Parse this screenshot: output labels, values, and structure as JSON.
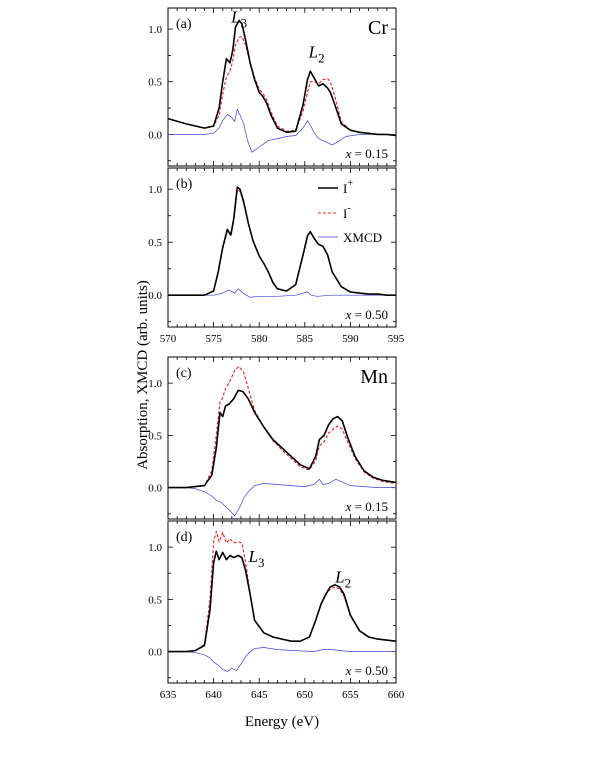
{
  "figure": {
    "ylabel": "Absorption, XMCD (arb. units)",
    "xlabel": "Energy (eV)",
    "legend": [
      {
        "label": "I",
        "sup": "+",
        "style": "solid",
        "color": "#000000"
      },
      {
        "label": "I",
        "sup": "-",
        "style": "dashed",
        "color": "#e02020"
      },
      {
        "label": "XMCD",
        "style": "thin",
        "color": "#4040d8"
      }
    ],
    "colors": {
      "iplus": "#000000",
      "iminus": "#e02020",
      "xmcd": "#4040d8"
    }
  },
  "chart_data": [
    {
      "type": "line",
      "panel": "(a)",
      "element": "Cr",
      "x_text": "= 0.15",
      "x_var": "x",
      "xlim": [
        570,
        595
      ],
      "ylim": [
        -0.3,
        1.2
      ],
      "yticks": [
        "0.0",
        "0.5",
        "1.0"
      ],
      "yticks_v": [
        0,
        0.5,
        1.0
      ],
      "xticks": [],
      "annotations": [
        {
          "main": "L",
          "sub": "3",
          "x": 577.8,
          "y": 1.06
        },
        {
          "main": "L",
          "sub": "2",
          "x": 586.3,
          "y": 0.73
        }
      ],
      "series": [
        {
          "key": "iplus",
          "x": [
            570,
            572,
            574,
            575,
            575.6,
            576,
            576.4,
            576.8,
            577.1,
            577.4,
            577.8,
            578.1,
            578.5,
            579,
            579.5,
            580,
            580.4,
            580.8,
            581.3,
            582,
            583,
            584,
            584.8,
            585.3,
            585.6,
            586,
            586.5,
            587,
            587.5,
            587.8,
            588.3,
            589,
            590,
            591,
            592,
            593,
            594,
            595
          ],
          "y": [
            0.15,
            0.1,
            0.06,
            0.08,
            0.25,
            0.5,
            0.72,
            0.68,
            0.8,
            1.02,
            1.08,
            1.05,
            0.9,
            0.68,
            0.52,
            0.4,
            0.36,
            0.3,
            0.18,
            0.06,
            0.02,
            0.03,
            0.28,
            0.52,
            0.6,
            0.54,
            0.46,
            0.48,
            0.44,
            0.4,
            0.28,
            0.1,
            0.04,
            0.02,
            0.01,
            0.0,
            0.0,
            -0.01
          ]
        },
        {
          "key": "iminus",
          "x": [
            570,
            572,
            574,
            575,
            575.6,
            576,
            576.4,
            576.8,
            577.1,
            577.4,
            577.8,
            578.1,
            578.5,
            579,
            579.5,
            580,
            580.4,
            580.8,
            581.3,
            582,
            583,
            584,
            584.8,
            585.3,
            585.6,
            586,
            586.5,
            587,
            587.5,
            587.8,
            588.3,
            589,
            590,
            591,
            592,
            593,
            594,
            595
          ],
          "y": [
            0.15,
            0.1,
            0.06,
            0.08,
            0.18,
            0.38,
            0.55,
            0.6,
            0.7,
            0.85,
            0.92,
            0.93,
            0.85,
            0.68,
            0.54,
            0.43,
            0.39,
            0.33,
            0.21,
            0.08,
            0.03,
            0.04,
            0.22,
            0.4,
            0.5,
            0.5,
            0.48,
            0.52,
            0.53,
            0.5,
            0.36,
            0.12,
            0.04,
            0.02,
            0.01,
            0.0,
            0.0,
            -0.01
          ]
        },
        {
          "key": "xmcd",
          "x": [
            570,
            572,
            574,
            575,
            575.6,
            576,
            576.5,
            577,
            577.3,
            577.6,
            578,
            578.3,
            578.7,
            579.2,
            580,
            581,
            582,
            583,
            584,
            584.8,
            585.3,
            585.6,
            586,
            586.5,
            587,
            587.5,
            588,
            588.6,
            589.5,
            591,
            593,
            595
          ],
          "y": [
            0.0,
            0.0,
            0.0,
            0.01,
            0.06,
            0.13,
            0.19,
            0.16,
            0.12,
            0.24,
            0.16,
            0.1,
            -0.05,
            -0.17,
            -0.12,
            -0.06,
            -0.04,
            -0.02,
            -0.01,
            0.06,
            0.13,
            0.09,
            0.02,
            -0.04,
            -0.06,
            -0.08,
            -0.1,
            -0.07,
            -0.02,
            0.0,
            0.0,
            0.0
          ]
        }
      ]
    },
    {
      "type": "line",
      "panel": "(b)",
      "element": "",
      "x_text": "= 0.50",
      "x_var": "x",
      "xlim": [
        570,
        595
      ],
      "ylim": [
        -0.3,
        1.2
      ],
      "yticks": [
        "0.0",
        "0.5",
        "1.0"
      ],
      "yticks_v": [
        0,
        0.5,
        1.0
      ],
      "xticks": [
        "570",
        "575",
        "580",
        "585",
        "590",
        "595"
      ],
      "xticks_v": [
        570,
        575,
        580,
        585,
        590,
        595
      ],
      "annotations": [],
      "series": [
        {
          "key": "iplus",
          "x": [
            570,
            572,
            574,
            575,
            575.5,
            576,
            576.5,
            576.9,
            577.2,
            577.6,
            577.9,
            578.3,
            578.8,
            579.3,
            580,
            580.5,
            581,
            581.5,
            582,
            583,
            584,
            584.8,
            585.3,
            585.6,
            586,
            586.5,
            587,
            587.5,
            588,
            589,
            590,
            591,
            592,
            593,
            594,
            595
          ],
          "y": [
            0.0,
            0.0,
            0.0,
            0.04,
            0.22,
            0.45,
            0.62,
            0.57,
            0.72,
            1.02,
            1.0,
            0.88,
            0.68,
            0.52,
            0.37,
            0.3,
            0.22,
            0.12,
            0.06,
            0.04,
            0.1,
            0.38,
            0.56,
            0.6,
            0.54,
            0.48,
            0.46,
            0.38,
            0.22,
            0.08,
            0.03,
            0.02,
            0.01,
            0.01,
            0.0,
            0.0
          ]
        },
        {
          "key": "iminus",
          "x": [
            570,
            572,
            574,
            575,
            575.5,
            576,
            576.5,
            576.9,
            577.2,
            577.6,
            577.9,
            578.3,
            578.8,
            579.3,
            580,
            580.5,
            581,
            581.5,
            582,
            583,
            584,
            584.8,
            585.3,
            585.6,
            586,
            586.5,
            587,
            587.5,
            588,
            589,
            590,
            591,
            592,
            593,
            594,
            595
          ],
          "y": [
            0.0,
            0.0,
            0.0,
            0.04,
            0.21,
            0.44,
            0.6,
            0.56,
            0.7,
            0.99,
            0.98,
            0.87,
            0.68,
            0.52,
            0.37,
            0.3,
            0.22,
            0.12,
            0.06,
            0.04,
            0.1,
            0.37,
            0.55,
            0.59,
            0.54,
            0.48,
            0.46,
            0.38,
            0.22,
            0.08,
            0.03,
            0.02,
            0.01,
            0.01,
            0.0,
            0.0
          ]
        },
        {
          "key": "xmcd",
          "x": [
            570,
            572,
            575,
            576,
            576.7,
            577.3,
            577.7,
            578.2,
            579,
            580,
            582,
            584,
            585.3,
            585.7,
            586.3,
            588,
            590,
            595
          ],
          "y": [
            0.0,
            0.0,
            0.0,
            0.02,
            0.05,
            0.02,
            0.06,
            0.02,
            -0.02,
            -0.01,
            -0.01,
            0.0,
            0.03,
            0.0,
            -0.01,
            0.0,
            0.0,
            0.0
          ]
        }
      ]
    },
    {
      "type": "line",
      "panel": "(c)",
      "element": "Mn",
      "x_text": "= 0.15",
      "x_var": "x",
      "xlim": [
        635,
        660
      ],
      "ylim": [
        -0.3,
        1.25
      ],
      "yticks": [
        "0.0",
        "0.5",
        "1.0"
      ],
      "yticks_v": [
        0,
        0.5,
        1.0
      ],
      "xticks": [],
      "annotations": [],
      "series": [
        {
          "key": "iplus",
          "x": [
            635,
            637,
            639,
            639.8,
            640.3,
            640.7,
            641,
            641.3,
            641.7,
            642.2,
            642.7,
            643.2,
            643.8,
            644.5,
            645.5,
            646.5,
            647.5,
            648.5,
            649.5,
            650.5,
            651.2,
            651.6,
            652.1,
            652.6,
            653.1,
            653.6,
            654.1,
            654.7,
            655.5,
            656.5,
            657.5,
            658.5,
            660
          ],
          "y": [
            0.0,
            0.0,
            0.02,
            0.12,
            0.38,
            0.72,
            0.68,
            0.78,
            0.8,
            0.85,
            0.93,
            0.92,
            0.85,
            0.72,
            0.58,
            0.46,
            0.38,
            0.3,
            0.22,
            0.18,
            0.3,
            0.46,
            0.5,
            0.6,
            0.66,
            0.68,
            0.64,
            0.48,
            0.3,
            0.16,
            0.1,
            0.07,
            0.05
          ]
        },
        {
          "key": "iminus",
          "x": [
            635,
            637,
            639,
            639.8,
            640.3,
            640.7,
            641,
            641.3,
            641.8,
            642.3,
            642.8,
            643.3,
            643.8,
            644.5,
            645.5,
            646.5,
            647.5,
            648.5,
            649.5,
            650.5,
            651.2,
            651.6,
            652.1,
            652.6,
            653.1,
            653.6,
            654.1,
            654.7,
            655.5,
            656.5,
            657.5,
            658.5,
            660
          ],
          "y": [
            0.0,
            0.0,
            0.02,
            0.16,
            0.5,
            0.82,
            0.86,
            0.95,
            1.02,
            1.12,
            1.16,
            1.1,
            0.95,
            0.74,
            0.58,
            0.45,
            0.36,
            0.28,
            0.2,
            0.17,
            0.26,
            0.4,
            0.44,
            0.52,
            0.56,
            0.59,
            0.56,
            0.44,
            0.28,
            0.15,
            0.09,
            0.06,
            0.04
          ]
        },
        {
          "key": "xmcd",
          "x": [
            635,
            637,
            638,
            639,
            639.8,
            640.3,
            640.8,
            641.3,
            641.8,
            642.3,
            642.8,
            643.3,
            643.8,
            644.5,
            645.5,
            647,
            648.5,
            650,
            651,
            651.6,
            652,
            652.6,
            653.4,
            654.2,
            655,
            656.5,
            658,
            660
          ],
          "y": [
            0.0,
            0.0,
            -0.01,
            -0.04,
            -0.08,
            -0.12,
            -0.14,
            -0.18,
            -0.22,
            -0.27,
            -0.2,
            -0.1,
            -0.04,
            0.02,
            0.04,
            0.03,
            0.02,
            0.01,
            0.03,
            0.08,
            0.03,
            0.04,
            0.08,
            0.05,
            0.02,
            0.01,
            0.0,
            0.0
          ]
        }
      ]
    },
    {
      "type": "line",
      "panel": "(d)",
      "element": "",
      "x_text": "= 0.50",
      "x_var": "x",
      "xlim": [
        635,
        660
      ],
      "ylim": [
        -0.3,
        1.25
      ],
      "yticks": [
        "0.0",
        "0.5",
        "1.0"
      ],
      "yticks_v": [
        0,
        0.5,
        1.0
      ],
      "xticks": [
        "635",
        "640",
        "645",
        "650",
        "655",
        "660"
      ],
      "xticks_v": [
        635,
        640,
        645,
        650,
        655,
        660
      ],
      "annotations": [
        {
          "main": "L",
          "sub": "3",
          "x": 644.7,
          "y": 0.86
        },
        {
          "main": "L",
          "sub": "2",
          "x": 654.2,
          "y": 0.66
        }
      ],
      "series": [
        {
          "key": "iplus",
          "x": [
            635,
            637,
            638,
            639,
            639.6,
            640,
            640.3,
            640.6,
            641,
            641.4,
            641.8,
            642.2,
            642.7,
            643.1,
            643.5,
            644,
            644.5,
            645.5,
            646.5,
            647.5,
            648.5,
            649.5,
            650.5,
            651.2,
            651.8,
            652.3,
            652.8,
            653.3,
            653.8,
            654.3,
            655,
            656,
            657,
            658,
            660
          ],
          "y": [
            0.0,
            0.0,
            0.01,
            0.06,
            0.4,
            0.85,
            0.96,
            0.88,
            0.95,
            0.88,
            0.92,
            0.9,
            0.92,
            0.9,
            0.78,
            0.55,
            0.3,
            0.18,
            0.14,
            0.12,
            0.1,
            0.1,
            0.14,
            0.3,
            0.46,
            0.55,
            0.62,
            0.64,
            0.62,
            0.55,
            0.35,
            0.2,
            0.14,
            0.12,
            0.1
          ]
        },
        {
          "key": "iminus",
          "x": [
            635,
            637,
            638,
            639,
            639.6,
            640,
            640.3,
            640.6,
            641,
            641.4,
            641.8,
            642.2,
            642.7,
            643.1,
            643.5,
            644,
            644.5,
            645.5,
            646.5,
            647.5,
            648.5,
            649.5,
            650.5,
            651.2,
            651.8,
            652.3,
            652.8,
            653.3,
            653.8,
            654.3,
            655,
            656,
            657,
            658,
            660
          ],
          "y": [
            0.0,
            0.0,
            0.01,
            0.07,
            0.5,
            1.05,
            1.15,
            1.05,
            1.14,
            1.04,
            1.08,
            1.04,
            1.05,
            1.04,
            0.86,
            0.56,
            0.3,
            0.18,
            0.14,
            0.12,
            0.1,
            0.1,
            0.14,
            0.3,
            0.45,
            0.54,
            0.6,
            0.62,
            0.6,
            0.53,
            0.34,
            0.2,
            0.14,
            0.12,
            0.1
          ]
        },
        {
          "key": "xmcd",
          "x": [
            635,
            637,
            638,
            639,
            639.6,
            640,
            640.5,
            641,
            641.5,
            642,
            642.5,
            643,
            643.5,
            644,
            644.5,
            645.5,
            647,
            649,
            651,
            652,
            653,
            654,
            655,
            657,
            660
          ],
          "y": [
            0.0,
            0.0,
            -0.01,
            -0.03,
            -0.06,
            -0.1,
            -0.13,
            -0.17,
            -0.19,
            -0.16,
            -0.18,
            -0.12,
            -0.05,
            0.0,
            0.03,
            0.04,
            0.02,
            0.01,
            0.0,
            0.02,
            0.02,
            0.01,
            0.0,
            0.0,
            0.0
          ]
        }
      ]
    }
  ]
}
